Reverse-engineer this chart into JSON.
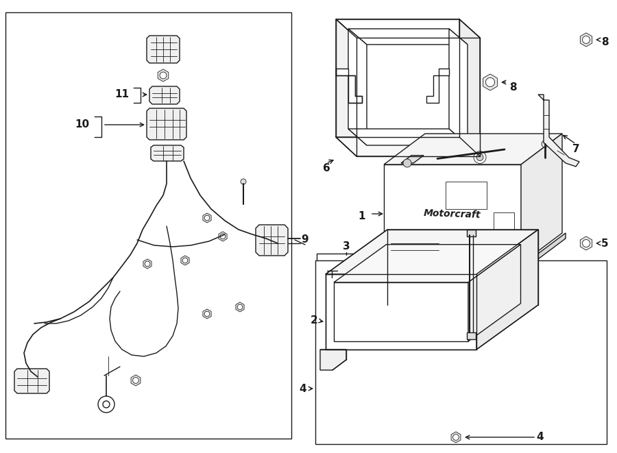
{
  "bg_color": "#ffffff",
  "line_color": "#1a1a1a",
  "fig_width": 9.0,
  "fig_height": 6.61,
  "lw": 1.0,
  "thin_lw": 0.6,
  "label_fs": 11
}
